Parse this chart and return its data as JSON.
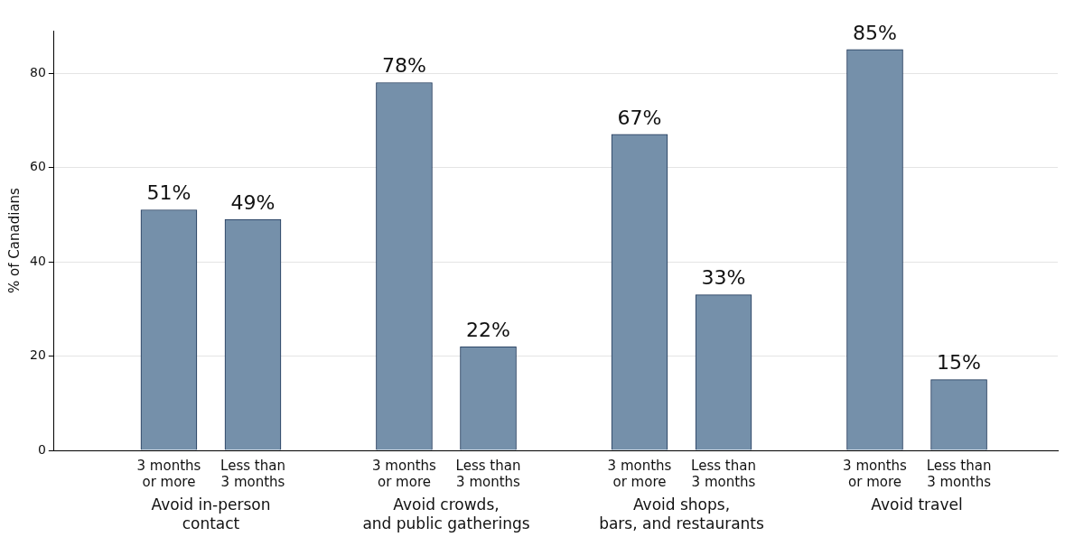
{
  "chart_data": {
    "type": "bar",
    "ylabel": "% of Canadians",
    "categories": [
      "3 months or more",
      "Less than 3 months",
      "3 months or more",
      "Less than 3 months",
      "3 months or more",
      "Less than 3 months",
      "3 months or more",
      "Less than 3 months"
    ],
    "values": [
      51,
      49,
      78,
      22,
      67,
      33,
      85,
      15
    ],
    "value_labels": [
      "51%",
      "49%",
      "78%",
      "22%",
      "67%",
      "33%",
      "85%",
      "15%"
    ],
    "color": "#7590aa",
    "ylim": [
      0,
      89
    ],
    "yticks": [
      0,
      20,
      40,
      60,
      80
    ],
    "grid": "y",
    "legend": false,
    "annotations": [
      "Avoid in-person contact",
      "Avoid crowds, and public gatherings",
      "Avoid shops, bars, and restaurants",
      "Avoid travel"
    ]
  }
}
